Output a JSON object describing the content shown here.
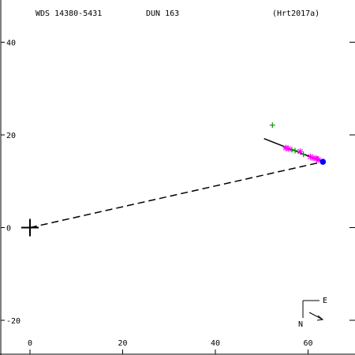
{
  "header": {
    "wds": "WDS 14380-5431",
    "disc": "DUN 163",
    "ref": "(Hrt2017a)"
  },
  "orientation": {
    "east_label": "E",
    "north_label": "N"
  },
  "colors": {
    "axes": "#000000",
    "orbit": "#000000",
    "green_obs": "#009900",
    "magenta_obs": "#ff00ff",
    "last_point": "#0000ff"
  },
  "chart_data": {
    "type": "scatter",
    "xlim": [
      -6,
      70
    ],
    "ylim": [
      -27,
      47
    ],
    "x_ticks": [
      0,
      20,
      40,
      60
    ],
    "y_ticks": [
      -20,
      0,
      20,
      40
    ],
    "x_tick_labels": [
      "0",
      "20",
      "40",
      "60"
    ],
    "y_tick_labels": [
      "-20",
      "0",
      "20",
      "40"
    ],
    "primary": [
      0,
      0
    ],
    "orbit_line": [
      [
        50.5,
        19.2
      ],
      [
        63.2,
        14.2
      ]
    ],
    "connector_line": [
      [
        0,
        0
      ],
      [
        63.2,
        14.2
      ]
    ],
    "series": [
      {
        "marker": "plus",
        "color": "green",
        "points": [
          [
            52.3,
            22.1
          ],
          [
            56.5,
            16.8
          ],
          [
            57.2,
            16.6
          ],
          [
            59.0,
            15.8
          ],
          [
            62.0,
            14.8
          ]
        ]
      },
      {
        "marker": "asterisk",
        "color": "magenta",
        "points": [
          [
            55.2,
            17.2
          ],
          [
            55.8,
            17.0
          ],
          [
            58.3,
            16.4
          ],
          [
            60.5,
            15.3
          ],
          [
            61.1,
            15.0
          ],
          [
            61.8,
            14.9
          ],
          [
            62.3,
            14.6
          ]
        ]
      },
      {
        "marker": "dot",
        "color": "blue",
        "points": [
          [
            63.2,
            14.2
          ]
        ]
      }
    ]
  }
}
